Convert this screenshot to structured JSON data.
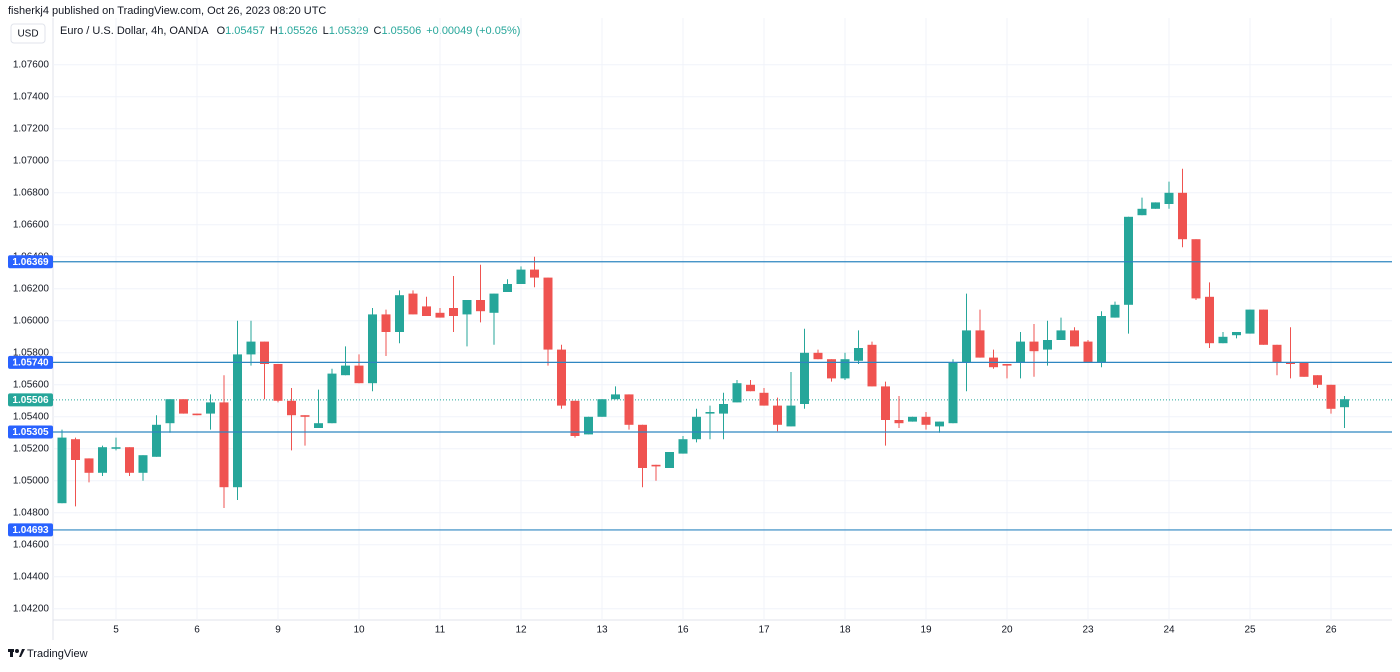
{
  "header": {
    "publisher": "fisherkj4 published on TradingView.com, Oct 26, 2023 08:20 UTC",
    "currency": "USD",
    "footer": "TradingView"
  },
  "chart_data": {
    "type": "candlestick",
    "title": "Euro / U.S. Dollar, 4h, OANDA",
    "legend": [
      {
        "label": "O",
        "value": "1.05457"
      },
      {
        "label": "H",
        "value": "1.05526"
      },
      {
        "label": "L",
        "value": "1.05329"
      },
      {
        "label": "C",
        "value": "1.05506"
      }
    ],
    "change": "+0.00049 (+0.05%)",
    "up_color": "#26a69a",
    "down_color": "#ef5350",
    "level_color": "#2e86c1",
    "badge_color": "#2962ff",
    "grid": true,
    "categories": [
      null,
      null,
      null,
      null,
      "5",
      null,
      null,
      null,
      null,
      null,
      "6",
      null,
      null,
      null,
      null,
      null,
      "9",
      null,
      null,
      null,
      null,
      null,
      "10",
      null,
      null,
      null,
      null,
      null,
      "11",
      null,
      null,
      null,
      null,
      null,
      "12",
      null,
      null,
      null,
      null,
      null,
      "13",
      null,
      null,
      null,
      null,
      null,
      "16",
      null,
      null,
      null,
      null,
      null,
      "17",
      null,
      null,
      null,
      null,
      null,
      "18",
      null,
      null,
      null,
      null,
      null,
      "19",
      null,
      null,
      null,
      null,
      null,
      "20",
      null,
      null,
      null,
      null,
      null,
      "23",
      null,
      null,
      null,
      null,
      null,
      "24",
      null,
      null,
      null,
      null,
      null,
      "25",
      null,
      null,
      null,
      null,
      null,
      "26",
      null
    ],
    "open": [
      1.0486,
      1.0526,
      1.0514,
      1.0505,
      1.052,
      1.0521,
      1.0505,
      1.0515,
      1.0536,
      1.0551,
      1.0542,
      1.0542,
      1.0549,
      1.0496,
      1.0579,
      1.0587,
      1.0573,
      1.055,
      1.0541,
      1.0533,
      1.0536,
      1.0566,
      1.0572,
      1.0561,
      1.0604,
      1.0593,
      1.0617,
      1.0609,
      1.0605,
      1.0608,
      1.0604,
      1.0613,
      1.0605,
      1.0618,
      1.0623,
      1.0632,
      1.0627,
      1.0582,
      1.055,
      1.0529,
      1.054,
      1.0551,
      1.0554,
      1.0535,
      1.051,
      1.0508,
      1.0517,
      1.0526,
      1.0542,
      1.0542,
      1.0549,
      1.056,
      1.0555,
      1.0547,
      1.0534,
      1.0548,
      1.058,
      1.0576,
      1.0564,
      1.0575,
      1.0585,
      1.0559,
      1.0538,
      1.0537,
      1.054,
      1.0534,
      1.0536,
      1.0574,
      1.0594,
      1.0577,
      1.0573,
      1.0574,
      1.0587,
      1.0582,
      1.0588,
      1.0594,
      1.0587,
      1.0574,
      1.0602,
      1.061,
      1.0666,
      1.067,
      1.0673,
      1.068,
      1.0651,
      1.0615,
      1.0586,
      1.0591,
      1.0592,
      1.0607,
      1.0585,
      1.0574,
      1.0574,
      1.0566,
      1.056,
      1.0546
    ],
    "high": [
      1.0532,
      1.0527,
      1.0514,
      1.0522,
      1.0527,
      1.0521,
      1.0516,
      1.0541,
      1.0551,
      1.0551,
      1.0542,
      1.0554,
      1.0566,
      1.06,
      1.06,
      1.0587,
      1.0573,
      1.0558,
      1.0541,
      1.0557,
      1.057,
      1.0584,
      1.0579,
      1.0608,
      1.0607,
      1.0619,
      1.0619,
      1.0615,
      1.0608,
      1.0628,
      1.0613,
      1.0635,
      1.0617,
      1.0626,
      1.0634,
      1.064,
      1.0627,
      1.0585,
      1.055,
      1.054,
      1.0551,
      1.0559,
      1.0554,
      1.0535,
      1.051,
      1.0518,
      1.0528,
      1.0545,
      1.0547,
      1.0555,
      1.0563,
      1.0563,
      1.0558,
      1.0552,
      1.0568,
      1.0595,
      1.0582,
      1.0576,
      1.058,
      1.0594,
      1.0587,
      1.0562,
      1.0553,
      1.054,
      1.0543,
      1.0537,
      1.0576,
      1.0617,
      1.0607,
      1.0582,
      1.0573,
      1.0593,
      1.0598,
      1.06,
      1.0602,
      1.0596,
      1.0588,
      1.0606,
      1.0612,
      1.0665,
      1.0677,
      1.0674,
      1.0687,
      1.0695,
      1.0651,
      1.0624,
      1.0593,
      1.0593,
      1.0607,
      1.0607,
      1.0585,
      1.0596,
      1.0574,
      1.0566,
      1.056,
      1.0553
    ],
    "low": [
      1.0486,
      1.0484,
      1.0499,
      1.0503,
      1.0519,
      1.0503,
      1.05,
      1.0515,
      1.053,
      1.0542,
      1.0541,
      1.0532,
      1.0483,
      1.0488,
      1.0572,
      1.0551,
      1.0549,
      1.0519,
      1.0522,
      1.0533,
      1.0536,
      1.0566,
      1.0561,
      1.0556,
      1.0578,
      1.0586,
      1.0604,
      1.0603,
      1.0602,
      1.0593,
      1.0584,
      1.0599,
      1.0585,
      1.0618,
      1.0623,
      1.0621,
      1.0572,
      1.0545,
      1.0527,
      1.0529,
      1.054,
      1.0551,
      1.0532,
      1.0496,
      1.05,
      1.0508,
      1.0517,
      1.0524,
      1.0526,
      1.0526,
      1.0549,
      1.0556,
      1.0547,
      1.0531,
      1.0534,
      1.0545,
      1.0576,
      1.0562,
      1.0563,
      1.0573,
      1.0559,
      1.0522,
      1.0533,
      1.0537,
      1.0532,
      1.053,
      1.0536,
      1.0556,
      1.0577,
      1.057,
      1.0564,
      1.0564,
      1.0565,
      1.0572,
      1.0588,
      1.0584,
      1.0574,
      1.0571,
      1.0602,
      1.0592,
      1.0666,
      1.067,
      1.067,
      1.0646,
      1.0613,
      1.0583,
      1.0586,
      1.0589,
      1.0592,
      1.0585,
      1.0566,
      1.0564,
      1.0565,
      1.0558,
      1.0542,
      1.0533
    ],
    "close": [
      1.0527,
      1.0513,
      1.0505,
      1.0521,
      1.0521,
      1.0505,
      1.0516,
      1.0535,
      1.0551,
      1.0542,
      1.0541,
      1.0549,
      1.0496,
      1.0579,
      1.0587,
      1.0573,
      1.055,
      1.0541,
      1.054,
      1.0536,
      1.0567,
      1.0572,
      1.0561,
      1.0604,
      1.0593,
      1.0616,
      1.0604,
      1.0603,
      1.0602,
      1.0603,
      1.0613,
      1.0606,
      1.0617,
      1.0623,
      1.0632,
      1.0627,
      1.0582,
      1.0547,
      1.0528,
      1.054,
      1.0551,
      1.0554,
      1.0535,
      1.0508,
      1.0509,
      1.0518,
      1.0526,
      1.054,
      1.0543,
      1.0548,
      1.0561,
      1.0556,
      1.0547,
      1.0535,
      1.0547,
      1.058,
      1.0576,
      1.0564,
      1.0576,
      1.0583,
      1.0559,
      1.0538,
      1.0536,
      1.054,
      1.0535,
      1.0537,
      1.0574,
      1.0594,
      1.0577,
      1.0571,
      1.0572,
      1.0587,
      1.0581,
      1.0588,
      1.0594,
      1.0584,
      1.0574,
      1.0603,
      1.061,
      1.0665,
      1.067,
      1.0674,
      1.068,
      1.0651,
      1.0614,
      1.0586,
      1.059,
      1.0593,
      1.0607,
      1.0585,
      1.0574,
      1.0573,
      1.0565,
      1.056,
      1.0545,
      1.0551
    ],
    "levels": [
      {
        "value": 1.06369,
        "label": "1.06369"
      },
      {
        "value": 1.0574,
        "label": "1.05740"
      },
      {
        "value": 1.05305,
        "label": "1.05305"
      },
      {
        "value": 1.04693,
        "label": "1.04693"
      }
    ],
    "last_price": {
      "value": 1.05506,
      "label": "1.05506"
    },
    "ylim": [
      1.0413,
      1.0788
    ],
    "yticks": [
      {
        "value": 1.076,
        "label": "1.07600"
      },
      {
        "value": 1.074,
        "label": "1.07400"
      },
      {
        "value": 1.072,
        "label": "1.07200"
      },
      {
        "value": 1.07,
        "label": "1.07000"
      },
      {
        "value": 1.068,
        "label": "1.06800"
      },
      {
        "value": 1.066,
        "label": "1.06600"
      },
      {
        "value": 1.064,
        "label": "1.06400"
      },
      {
        "value": 1.062,
        "label": "1.06200"
      },
      {
        "value": 1.06,
        "label": "1.06000"
      },
      {
        "value": 1.058,
        "label": "1.05800"
      },
      {
        "value": 1.056,
        "label": "1.05600"
      },
      {
        "value": 1.054,
        "label": "1.05400"
      },
      {
        "value": 1.052,
        "label": "1.05200"
      },
      {
        "value": 1.05,
        "label": "1.05000"
      },
      {
        "value": 1.048,
        "label": "1.04800"
      },
      {
        "value": 1.046,
        "label": "1.04600"
      },
      {
        "value": 1.044,
        "label": "1.04400"
      },
      {
        "value": 1.042,
        "label": "1.04200"
      }
    ]
  }
}
